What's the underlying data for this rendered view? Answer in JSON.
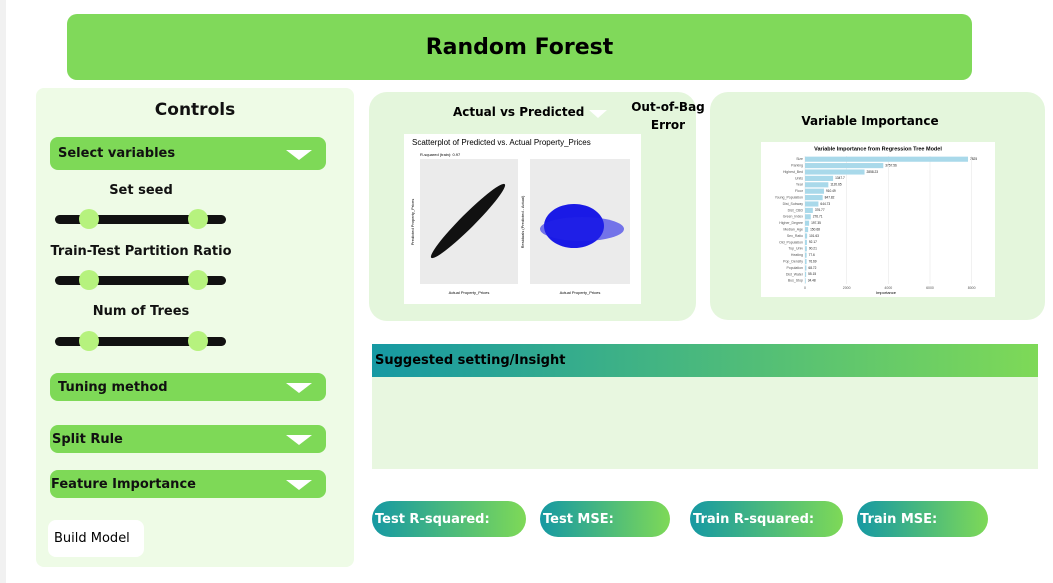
{
  "header": {
    "title": "Random Forest"
  },
  "controls": {
    "title": "Controls",
    "select_variables": "Select variables",
    "sliders": [
      {
        "label": "Set seed"
      },
      {
        "label": "Train-Test Partition Ratio"
      },
      {
        "label": "Num of Trees"
      }
    ],
    "tuning_method": "Tuning method",
    "split_rule": "Split Rule",
    "feature_importance": "Feature Importance",
    "button": "Build Model"
  },
  "prediction_panel": {
    "tab": "Actual vs Predicted",
    "oob_error": "Out-of-Bag Error",
    "plot": {
      "title": "Scatterplot of Predicted vs. Actual Property_Prices",
      "subtitle": "R-squared (train): 0.97",
      "left_ylabel": "Predicted Property_Prices",
      "left_xlabel": "Actual Property_Prices",
      "right_ylabel": "Residuals (Predicted - Actual)",
      "right_xlabel": "Actual Property_Prices"
    }
  },
  "importance_panel": {
    "title": "Variable Importance",
    "chart_data": {
      "type": "bar",
      "orientation": "horizontal",
      "title": "Variable Importance from Regression Tree Model",
      "categories": [
        "Size",
        "Parking",
        "Highest_Bed",
        "Units",
        "Year",
        "Floor",
        "Young_Population",
        "Dist_Subway",
        "Dist_CBD",
        "Green_Index",
        "Higher_Degree",
        "Median_Age",
        "Sex_Ratio",
        "Old_Population",
        "Top_Univ",
        "Heating",
        "Pop_Density",
        "Population",
        "Dist_Water",
        "Bus_Stop"
      ],
      "values": [
        7825,
        3757.56,
        2858.23,
        1347.7,
        1120.65,
        910.49,
        847.82,
        644.73,
        376.77,
        276.71,
        197.35,
        150.68,
        101.63,
        92.17,
        90.21,
        77.6,
        76.69,
        68.72,
        55.15,
        34.48
      ],
      "color": "#a9d9ea",
      "xlim": [
        0,
        8400
      ],
      "xticks": [
        0,
        2000,
        4000,
        6000,
        8000
      ],
      "xlabel": "Importance",
      "grid": true
    }
  },
  "insight": {
    "title": "Suggested setting/Insight"
  },
  "metrics": [
    "Test R-squared:",
    "Test MSE:",
    "Train R-squared:",
    "Train MSE:"
  ]
}
